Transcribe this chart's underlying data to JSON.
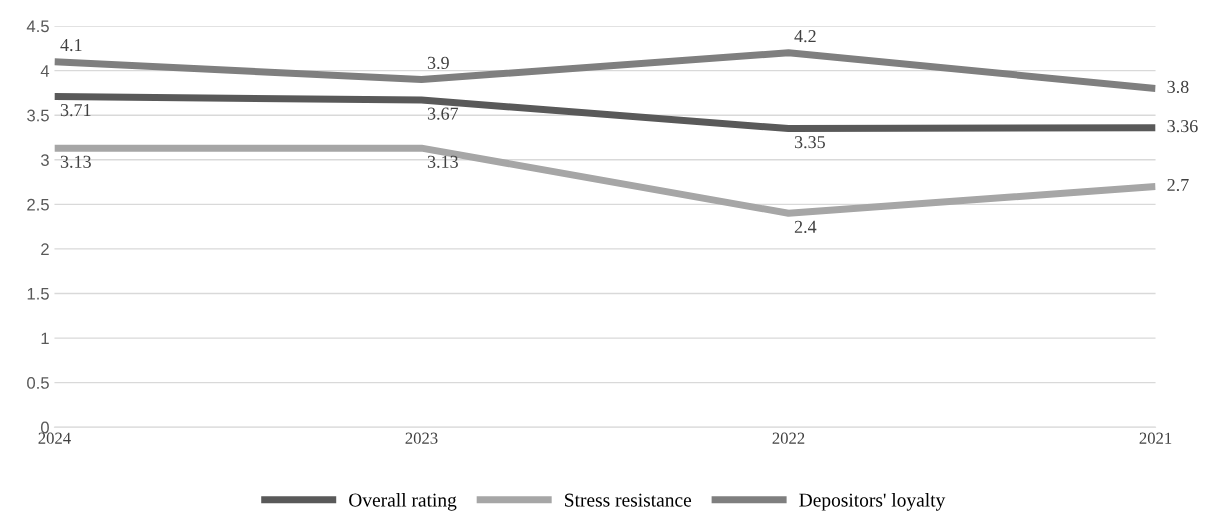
{
  "chart_data": {
    "type": "line",
    "categories": [
      "2024",
      "2023",
      "2022",
      "2021"
    ],
    "series": [
      {
        "name": "Overall rating",
        "color": "#595959",
        "values": [
          3.71,
          3.67,
          3.35,
          3.36
        ]
      },
      {
        "name": "Stress resistance",
        "color": "#a6a6a6",
        "values": [
          3.13,
          3.13,
          2.4,
          2.7
        ]
      },
      {
        "name": "Depositors' loyalty",
        "color": "#7f7f7f",
        "values": [
          4.1,
          3.9,
          4.2,
          3.8
        ]
      }
    ],
    "ylim": [
      0,
      4.5
    ],
    "yticks": [
      0,
      0.5,
      1,
      1.5,
      2,
      2.5,
      3,
      3.5,
      4,
      4.5
    ],
    "grid": "y",
    "legend": "bottom",
    "data_labels": true,
    "line_style": "solid"
  }
}
